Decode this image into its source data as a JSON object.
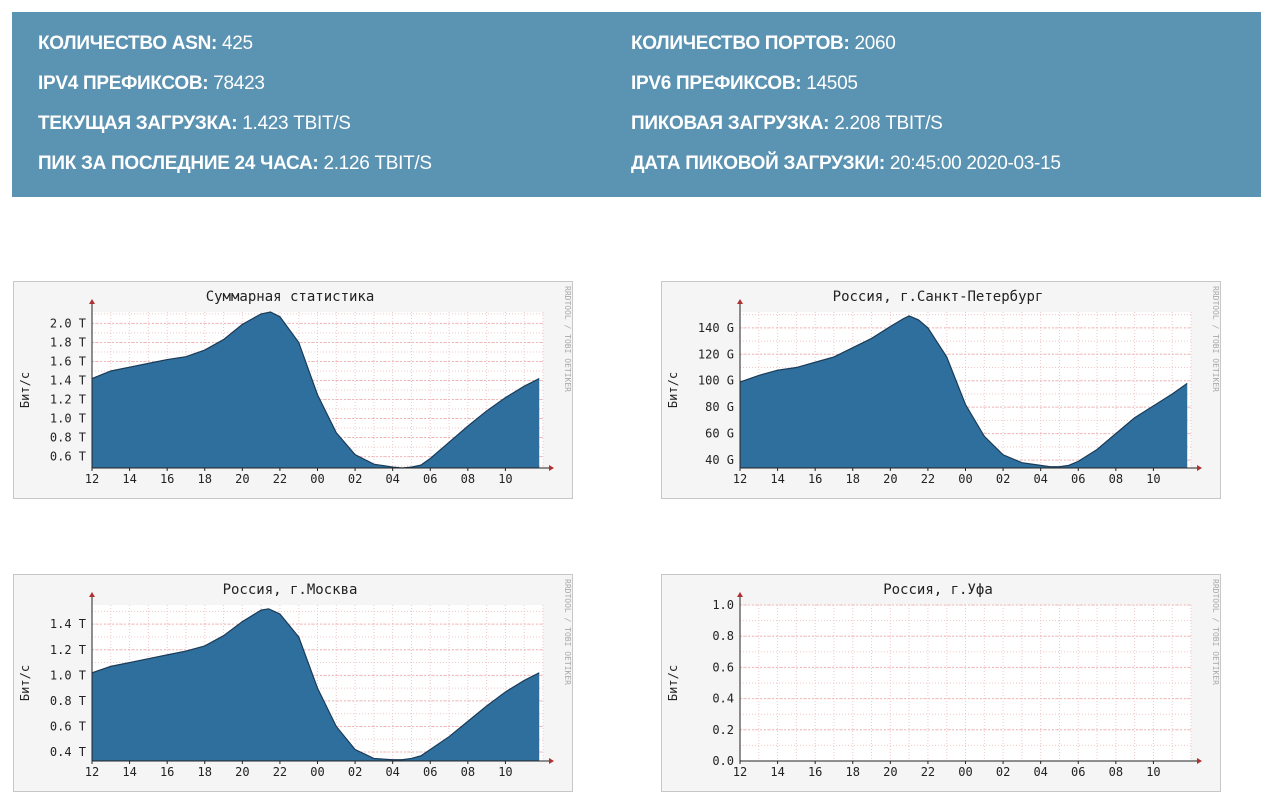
{
  "stats": [
    {
      "label": "КОЛИЧЕСТВО ASN:",
      "value": "425"
    },
    {
      "label": "IPV4 ПРЕФИКСОВ:",
      "value": "78423"
    },
    {
      "label": "ТЕКУЩАЯ ЗАГРУЗКА:",
      "value": "1.423 TBIT/S"
    },
    {
      "label": "ПИК ЗА ПОСЛЕДНИЕ 24 ЧАСА:",
      "value": "2.126 TBIT/S"
    },
    {
      "label": "КОЛИЧЕСТВО ПОРТОВ:",
      "value": "2060"
    },
    {
      "label": "IPV6 ПРЕФИКСОВ:",
      "value": "14505"
    },
    {
      "label": "ПИКОВАЯ ЗАГРУЗКА:",
      "value": "2.208 TBIT/S"
    },
    {
      "label": "ДАТА ПИКОВОЙ ЗАГРУЗКИ:",
      "value": "20:45:00 2020-03-15"
    }
  ],
  "colors": {
    "banner": "#5b93b3",
    "area": "#2f6f9e",
    "grid": "#f0c8c8",
    "arrow": "#b03030"
  },
  "chart_data": [
    {
      "type": "area",
      "title": "Суммарная статистика",
      "ylabel": "Бит/с",
      "watermark": "RRDTOOL / TOBI OETIKER",
      "x_ticks": [
        "12",
        "14",
        "16",
        "18",
        "20",
        "22",
        "00",
        "02",
        "04",
        "06",
        "08",
        "10"
      ],
      "xlim": [
        12,
        36
      ],
      "y_ticks": [
        0.6,
        0.8,
        1.0,
        1.2,
        1.4,
        1.6,
        1.8,
        2.0
      ],
      "y_tick_labels": [
        "0.6 T",
        "0.8 T",
        "1.0 T",
        "1.2 T",
        "1.4 T",
        "1.6 T",
        "1.8 T",
        "2.0 T"
      ],
      "ylim": [
        0.48,
        2.12
      ],
      "x": [
        12,
        13,
        14,
        15,
        16,
        17,
        18,
        19,
        20,
        21,
        21.5,
        22,
        23,
        24,
        25,
        26,
        27,
        28,
        28.5,
        29,
        29.5,
        30,
        31,
        32,
        33,
        34,
        35,
        35.8
      ],
      "y": [
        1.42,
        1.5,
        1.54,
        1.58,
        1.62,
        1.65,
        1.72,
        1.83,
        1.99,
        2.1,
        2.12,
        2.07,
        1.8,
        1.25,
        0.85,
        0.62,
        0.52,
        0.49,
        0.48,
        0.49,
        0.51,
        0.58,
        0.75,
        0.92,
        1.08,
        1.22,
        1.34,
        1.42
      ]
    },
    {
      "type": "area",
      "title": "Россия, г.Санкт-Петербург",
      "ylabel": "Бит/с",
      "watermark": "RRDTOOL / TOBI OETIKER",
      "x_ticks": [
        "12",
        "14",
        "16",
        "18",
        "20",
        "22",
        "00",
        "02",
        "04",
        "06",
        "08",
        "10"
      ],
      "xlim": [
        12,
        36
      ],
      "y_ticks": [
        40,
        60,
        80,
        100,
        120,
        140
      ],
      "y_tick_labels": [
        "40 G",
        "60 G",
        "80 G",
        "100 G",
        "120 G",
        "140 G"
      ],
      "ylim": [
        34,
        152
      ],
      "x": [
        12,
        13,
        14,
        15,
        16,
        17,
        18,
        19,
        20,
        20.7,
        21,
        21.5,
        22,
        23,
        24,
        25,
        26,
        27,
        28,
        28.5,
        29,
        29.5,
        30,
        31,
        32,
        33,
        34,
        35,
        35.8
      ],
      "y": [
        99,
        104,
        108,
        110,
        114,
        118,
        125,
        132,
        141,
        147,
        149,
        146,
        140,
        118,
        82,
        58,
        44,
        38,
        36,
        35,
        35,
        36,
        39,
        48,
        60,
        72,
        81,
        90,
        98
      ]
    },
    {
      "type": "area",
      "title": "Россия, г.Москва",
      "ylabel": "Бит/с",
      "watermark": "RRDTOOL / TOBI OETIKER",
      "x_ticks": [
        "12",
        "14",
        "16",
        "18",
        "20",
        "22",
        "00",
        "02",
        "04",
        "06",
        "08",
        "10"
      ],
      "xlim": [
        12,
        36
      ],
      "y_ticks": [
        0.4,
        0.6,
        0.8,
        1.0,
        1.2,
        1.4
      ],
      "y_tick_labels": [
        "0.4 T",
        "0.6 T",
        "0.8 T",
        "1.0 T",
        "1.2 T",
        "1.4 T"
      ],
      "ylim": [
        0.33,
        1.55
      ],
      "x": [
        12,
        13,
        14,
        15,
        16,
        17,
        18,
        19,
        20,
        21,
        21.4,
        22,
        23,
        24,
        25,
        26,
        27,
        28,
        28.5,
        29,
        29.5,
        30,
        31,
        32,
        33,
        34,
        35,
        35.8
      ],
      "y": [
        1.02,
        1.07,
        1.1,
        1.13,
        1.16,
        1.19,
        1.23,
        1.31,
        1.42,
        1.51,
        1.52,
        1.48,
        1.3,
        0.9,
        0.6,
        0.42,
        0.35,
        0.34,
        0.34,
        0.35,
        0.37,
        0.42,
        0.52,
        0.64,
        0.76,
        0.87,
        0.96,
        1.02
      ]
    },
    {
      "type": "area",
      "title": "Россия, г.Уфа",
      "ylabel": "Бит/с",
      "watermark": "RRDTOOL / TOBI OETIKER",
      "x_ticks": [
        "12",
        "14",
        "16",
        "18",
        "20",
        "22",
        "00",
        "02",
        "04",
        "06",
        "08",
        "10"
      ],
      "xlim": [
        12,
        36
      ],
      "y_ticks": [
        0.0,
        0.2,
        0.4,
        0.6,
        0.8,
        1.0
      ],
      "y_tick_labels": [
        "0.0",
        "0.2",
        "0.4",
        "0.6",
        "0.8",
        "1.0"
      ],
      "ylim": [
        0,
        1.0
      ],
      "x": [],
      "y": []
    }
  ]
}
